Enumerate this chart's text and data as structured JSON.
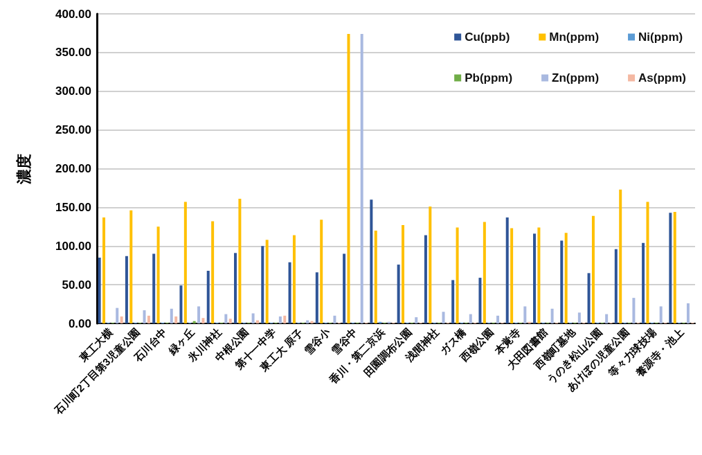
{
  "chart_data": {
    "type": "bar",
    "ylabel": "濃度",
    "categories": [
      "東工大横",
      "石川町2丁目第3児童公園",
      "石川台中",
      "緑ヶ丘",
      "氷川神社",
      "中根公園",
      "第十一中学",
      "東工大 原子",
      "雪谷小",
      "雪谷中",
      "香川・第二京浜",
      "田園調布公園",
      "浅間神社",
      "ガス橋",
      "西嶺公園",
      "本覚寺",
      "大田図書館",
      "西嶺町墓地",
      "うのき松山公園",
      "あけぼの児童公園",
      "等々力球技場",
      "養源寺・池上"
    ],
    "series": [
      {
        "name": "Cu(ppb)",
        "color": "#2f5597",
        "values": [
          85,
          87,
          90,
          49,
          68,
          91,
          100,
          79,
          66,
          90,
          160,
          76,
          114,
          56,
          59,
          137,
          116,
          107,
          65,
          96,
          104,
          143
        ]
      },
      {
        "name": "Mn(ppm)",
        "color": "#ffc000",
        "values": [
          137,
          146,
          125,
          157,
          132,
          161,
          108,
          114,
          134,
          374,
          120,
          127,
          151,
          124,
          131,
          123,
          124,
          117,
          139,
          173,
          157,
          144
        ]
      },
      {
        "name": "Ni(ppm)",
        "color": "#5b9bd5",
        "values": [
          1,
          1,
          1,
          1,
          1,
          1,
          1,
          1,
          1,
          1,
          2,
          1,
          1,
          1,
          1,
          1,
          1,
          1,
          1,
          1,
          1,
          1
        ]
      },
      {
        "name": "Pb(ppm)",
        "color": "#70ad47",
        "values": [
          1,
          1,
          1,
          3,
          1,
          1,
          1,
          1,
          1,
          1,
          1,
          1,
          1,
          1,
          1,
          1,
          1,
          1,
          1,
          1,
          1,
          1
        ]
      },
      {
        "name": "Zn(ppm)",
        "color": "#a9b9e0",
        "values": [
          20,
          17,
          19,
          22,
          12,
          13,
          9,
          4,
          10,
          374,
          2,
          8,
          15,
          12,
          10,
          22,
          19,
          14,
          12,
          33,
          22,
          26
        ]
      },
      {
        "name": "As(ppm)",
        "color": "#f4b8a2",
        "values": [
          9,
          10,
          9,
          7,
          6,
          4,
          10,
          3,
          1,
          1,
          1,
          1,
          1,
          1,
          1,
          2,
          1,
          1,
          1,
          1,
          1,
          1
        ]
      }
    ],
    "ylim": [
      0,
      400
    ],
    "yticks": [
      {
        "value": 0,
        "label": "0.00"
      },
      {
        "value": 50,
        "label": "50.00"
      },
      {
        "value": 100,
        "label": "100.00"
      },
      {
        "value": 150,
        "label": "150.00"
      },
      {
        "value": 200,
        "label": "200.00"
      },
      {
        "value": 250,
        "label": "250.00"
      },
      {
        "value": 300,
        "label": "300.00"
      },
      {
        "value": 350,
        "label": "350.00"
      },
      {
        "value": 400,
        "label": "400.00"
      }
    ],
    "grid": "y",
    "legend": "top right"
  }
}
